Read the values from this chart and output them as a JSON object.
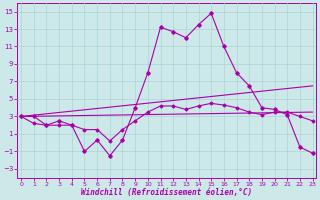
{
  "xlabel": "Windchill (Refroidissement éolien,°C)",
  "background_color": "#cce8e8",
  "grid_color": "#aad4d4",
  "line_color": "#aa00aa",
  "x": [
    0,
    1,
    2,
    3,
    4,
    5,
    6,
    7,
    8,
    9,
    10,
    11,
    12,
    13,
    14,
    15,
    16,
    17,
    18,
    19,
    20,
    21,
    22,
    23
  ],
  "line1": [
    3.0,
    3.0,
    2.0,
    2.5,
    2.0,
    -1.0,
    0.3,
    -1.5,
    0.3,
    4.0,
    8.0,
    13.2,
    12.7,
    12.0,
    13.5,
    14.8,
    11.0,
    8.0,
    6.5,
    4.0,
    3.8,
    3.2,
    -0.5,
    -1.2
  ],
  "line2": [
    3.0,
    2.2,
    2.0,
    2.0,
    2.0,
    1.5,
    1.5,
    0.2,
    1.5,
    2.5,
    3.5,
    4.2,
    4.2,
    3.8,
    4.2,
    4.5,
    4.3,
    4.0,
    3.5,
    3.2,
    3.5,
    3.5,
    3.0,
    2.5
  ],
  "line3": [
    3.0,
    3.5
  ],
  "line3x": [
    0,
    23
  ],
  "line4": [
    3.0,
    6.5
  ],
  "line4x": [
    0,
    23
  ],
  "ylim": [
    -4,
    16
  ],
  "yticks": [
    -3,
    -1,
    1,
    3,
    5,
    7,
    9,
    11,
    13,
    15
  ],
  "xticks": [
    0,
    1,
    2,
    3,
    4,
    5,
    6,
    7,
    8,
    9,
    10,
    11,
    12,
    13,
    14,
    15,
    16,
    17,
    18,
    19,
    20,
    21,
    22,
    23
  ],
  "figsize": [
    3.2,
    2.0
  ],
  "dpi": 100
}
